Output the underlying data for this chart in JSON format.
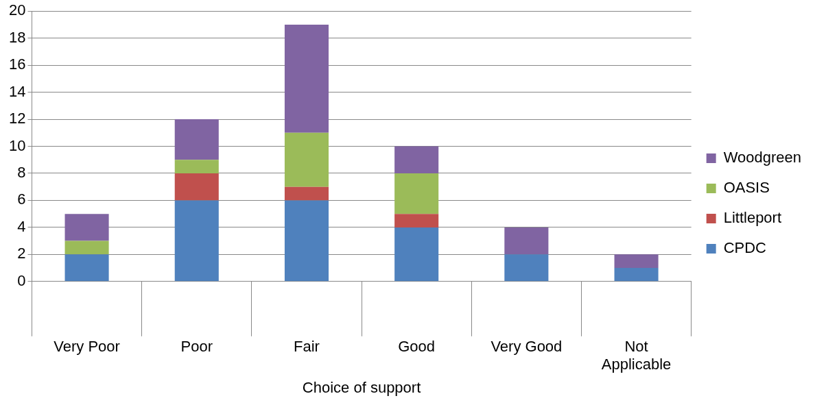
{
  "chart_data": {
    "type": "bar",
    "stacked": true,
    "xlabel": "Choice of support",
    "categories": [
      "Very Poor",
      "Poor",
      "Fair",
      "Good",
      "Very Good",
      "Not Applicable"
    ],
    "series": [
      {
        "name": "CPDC",
        "color": "#4f81bd",
        "values": [
          2,
          6,
          6,
          4,
          2,
          1
        ]
      },
      {
        "name": "Littleport",
        "color": "#c0504d",
        "values": [
          0,
          2,
          1,
          1,
          0,
          0
        ]
      },
      {
        "name": "OASIS",
        "color": "#9bbb59",
        "values": [
          1,
          1,
          4,
          3,
          0,
          0
        ]
      },
      {
        "name": "Woodgreen",
        "color": "#8064a2",
        "values": [
          2,
          3,
          8,
          2,
          2,
          1
        ]
      }
    ],
    "ylim": [
      0,
      20
    ],
    "yticks": [
      0,
      2,
      4,
      6,
      8,
      10,
      12,
      14,
      16,
      18,
      20
    ],
    "grid": "y",
    "legend": "right"
  }
}
